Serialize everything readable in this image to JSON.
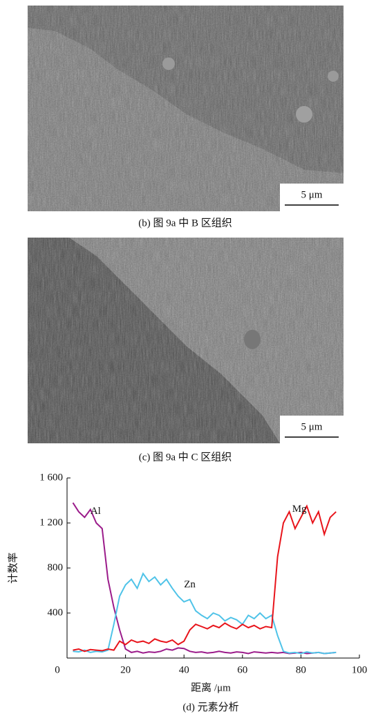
{
  "figures": [
    {
      "scale_bar": "5 μm",
      "caption": "(b) 图 9a 中 B 区组织"
    },
    {
      "scale_bar": "5 μm",
      "caption": "(c) 图 9a 中 C 区组织"
    }
  ],
  "chart_data": {
    "type": "line",
    "caption": "(d) 元素分析",
    "xlabel": "距离 /μm",
    "ylabel": "计数率",
    "xlim": [
      0,
      100
    ],
    "xticks": [
      0,
      20,
      40,
      60,
      80,
      100
    ],
    "ylim": [
      0,
      1600
    ],
    "yticks": [
      400,
      800,
      {
        "value": 1200,
        "label": "1 200"
      },
      {
        "value": 1600,
        "label": "1 600"
      }
    ],
    "x": [
      2,
      4,
      6,
      8,
      10,
      12,
      14,
      16,
      18,
      20,
      22,
      24,
      26,
      28,
      30,
      32,
      34,
      36,
      38,
      40,
      42,
      44,
      46,
      48,
      50,
      52,
      54,
      56,
      58,
      60,
      62,
      64,
      66,
      68,
      70,
      72,
      74,
      76,
      78,
      80,
      82,
      84,
      86,
      88,
      90,
      92
    ],
    "series": [
      {
        "name": "Al",
        "color": "#9b1b8a",
        "values": [
          1380,
          1300,
          1250,
          1320,
          1200,
          1150,
          700,
          450,
          250,
          80,
          50,
          60,
          45,
          55,
          50,
          60,
          80,
          70,
          90,
          85,
          60,
          50,
          55,
          45,
          50,
          60,
          50,
          45,
          55,
          50,
          40,
          55,
          50,
          45,
          50,
          45,
          50,
          40,
          45,
          50,
          40,
          45,
          50,
          40,
          45,
          50
        ]
      },
      {
        "name": "Zn",
        "color": "#4fc3e8",
        "values": [
          60,
          55,
          70,
          50,
          60,
          55,
          70,
          300,
          550,
          650,
          700,
          620,
          750,
          680,
          720,
          650,
          700,
          620,
          550,
          500,
          520,
          420,
          380,
          350,
          400,
          380,
          330,
          360,
          340,
          300,
          380,
          350,
          400,
          350,
          380,
          200,
          60,
          45,
          50,
          40,
          55,
          45,
          50,
          40,
          45,
          50
        ]
      },
      {
        "name": "Mg",
        "color": "#e8141b",
        "values": [
          70,
          80,
          60,
          75,
          70,
          65,
          80,
          70,
          150,
          120,
          160,
          140,
          150,
          130,
          170,
          150,
          140,
          160,
          120,
          150,
          250,
          300,
          280,
          260,
          290,
          270,
          310,
          280,
          260,
          300,
          270,
          290,
          260,
          280,
          270,
          900,
          1200,
          1300,
          1150,
          1250,
          1350,
          1200,
          1300,
          1100,
          1250,
          1300
        ]
      }
    ]
  }
}
